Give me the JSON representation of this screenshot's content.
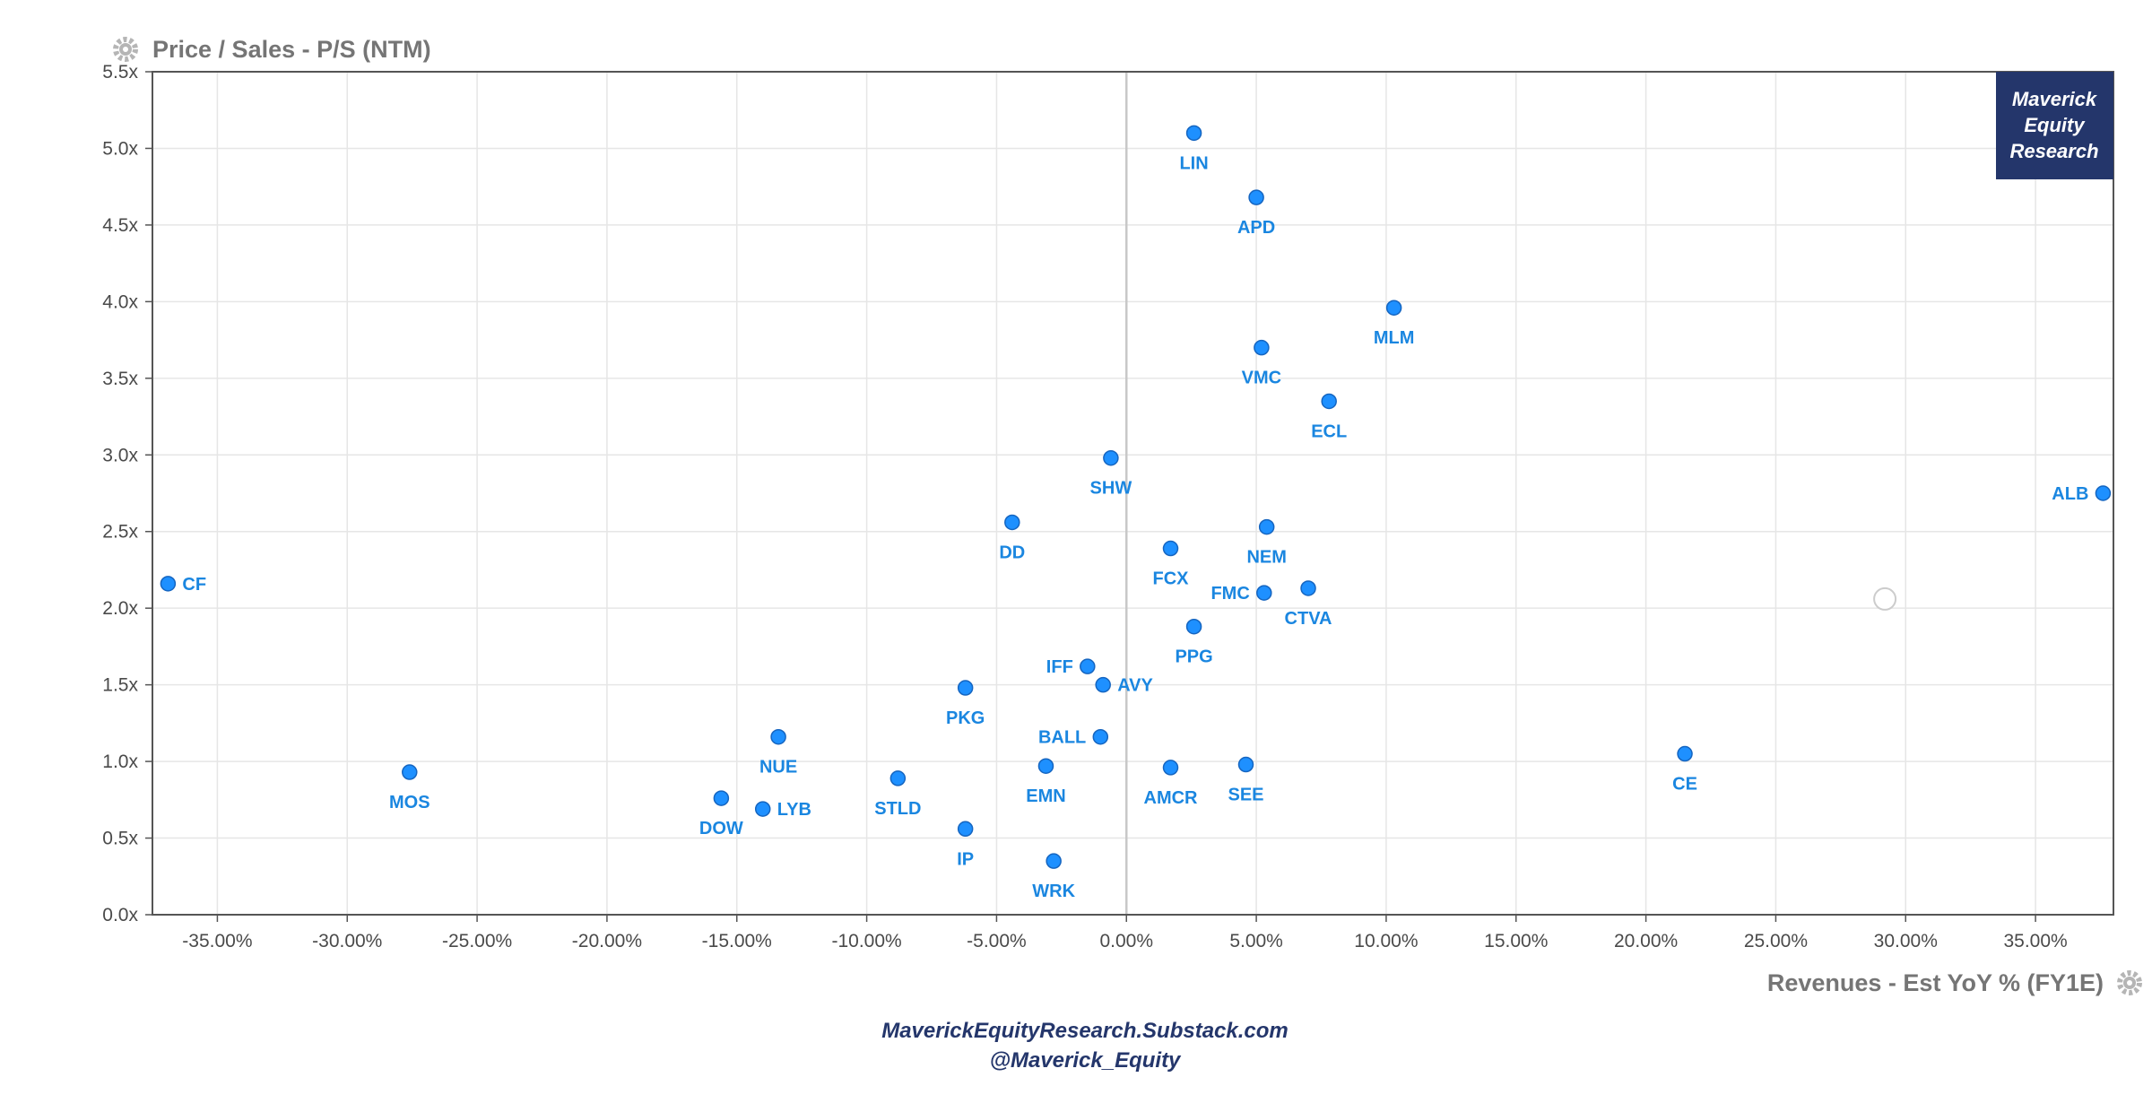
{
  "chart_data": {
    "type": "scatter",
    "ylabel": "Price / Sales - P/S (NTM)",
    "xlabel": "Revenues - Est YoY % (FY1E)",
    "xlim": [
      -37.5,
      38
    ],
    "ylim": [
      0,
      5.5
    ],
    "x_ticks": [
      -35,
      -30,
      -25,
      -20,
      -15,
      -10,
      -5,
      0,
      5,
      10,
      15,
      20,
      25,
      30,
      35
    ],
    "x_tick_labels": [
      "-35.00%",
      "-30.00%",
      "-25.00%",
      "-20.00%",
      "-15.00%",
      "-10.00%",
      "-5.00%",
      "0.00%",
      "5.00%",
      "10.00%",
      "15.00%",
      "20.00%",
      "25.00%",
      "30.00%",
      "35.00%"
    ],
    "y_ticks": [
      0,
      0.5,
      1,
      1.5,
      2,
      2.5,
      3,
      3.5,
      4,
      4.5,
      5,
      5.5
    ],
    "y_tick_labels": [
      "0.0x",
      "0.5x",
      "1.0x",
      "1.5x",
      "2.0x",
      "2.5x",
      "3.0x",
      "3.5x",
      "4.0x",
      "4.5x",
      "5.0x",
      "5.5x"
    ],
    "grid": true,
    "point_color": "#1e90ff",
    "points": [
      {
        "label": "LIN",
        "x": 2.6,
        "y": 5.1,
        "label_pos": "below"
      },
      {
        "label": "APD",
        "x": 5.0,
        "y": 4.68,
        "label_pos": "below"
      },
      {
        "label": "MLM",
        "x": 10.3,
        "y": 3.96,
        "label_pos": "below"
      },
      {
        "label": "VMC",
        "x": 5.2,
        "y": 3.7,
        "label_pos": "below"
      },
      {
        "label": "ECL",
        "x": 7.8,
        "y": 3.35,
        "label_pos": "below"
      },
      {
        "label": "SHW",
        "x": -0.6,
        "y": 2.98,
        "label_pos": "below"
      },
      {
        "label": "ALB",
        "x": 37.6,
        "y": 2.75,
        "label_pos": "left"
      },
      {
        "label": "DD",
        "x": -4.4,
        "y": 2.56,
        "label_pos": "below"
      },
      {
        "label": "NEM",
        "x": 5.4,
        "y": 2.53,
        "label_pos": "below"
      },
      {
        "label": "FCX",
        "x": 1.7,
        "y": 2.39,
        "label_pos": "below"
      },
      {
        "label": "CF",
        "x": -36.9,
        "y": 2.16,
        "label_pos": "right"
      },
      {
        "label": "CTVA",
        "x": 7.0,
        "y": 2.13,
        "label_pos": "below"
      },
      {
        "label": "FMC",
        "x": 5.3,
        "y": 2.1,
        "label_pos": "left"
      },
      {
        "label": "PPG",
        "x": 2.6,
        "y": 1.88,
        "label_pos": "below"
      },
      {
        "label": "IFF",
        "x": -1.5,
        "y": 1.62,
        "label_pos": "left"
      },
      {
        "label": "AVY",
        "x": -0.9,
        "y": 1.5,
        "label_pos": "right"
      },
      {
        "label": "PKG",
        "x": -6.2,
        "y": 1.48,
        "label_pos": "below"
      },
      {
        "label": "NUE",
        "x": -13.4,
        "y": 1.16,
        "label_pos": "below"
      },
      {
        "label": "BALL",
        "x": -1.0,
        "y": 1.16,
        "label_pos": "left"
      },
      {
        "label": "CE",
        "x": 21.5,
        "y": 1.05,
        "label_pos": "below"
      },
      {
        "label": "SEE",
        "x": 4.6,
        "y": 0.98,
        "label_pos": "below"
      },
      {
        "label": "EMN",
        "x": -3.1,
        "y": 0.97,
        "label_pos": "below"
      },
      {
        "label": "AMCR",
        "x": 1.7,
        "y": 0.96,
        "label_pos": "below"
      },
      {
        "label": "MOS",
        "x": -27.6,
        "y": 0.93,
        "label_pos": "below"
      },
      {
        "label": "STLD",
        "x": -8.8,
        "y": 0.89,
        "label_pos": "below"
      },
      {
        "label": "DOW",
        "x": -15.6,
        "y": 0.76,
        "label_pos": "below"
      },
      {
        "label": "LYB",
        "x": -14.0,
        "y": 0.69,
        "label_pos": "right"
      },
      {
        "label": "IP",
        "x": -6.2,
        "y": 0.56,
        "label_pos": "below"
      },
      {
        "label": "WRK",
        "x": -2.8,
        "y": 0.35,
        "label_pos": "below"
      }
    ],
    "empty_marker": {
      "x": 29.2,
      "y": 2.06
    }
  },
  "watermark": {
    "lines": [
      "Maverick",
      "Equity",
      "Research"
    ],
    "background": "#24366b"
  },
  "footer": {
    "line1": "MaverickEquityResearch.Substack.com",
    "line2": "@Maverick_Equity"
  },
  "icons": {
    "y_settings": "gear-icon",
    "x_settings": "gear-icon"
  }
}
